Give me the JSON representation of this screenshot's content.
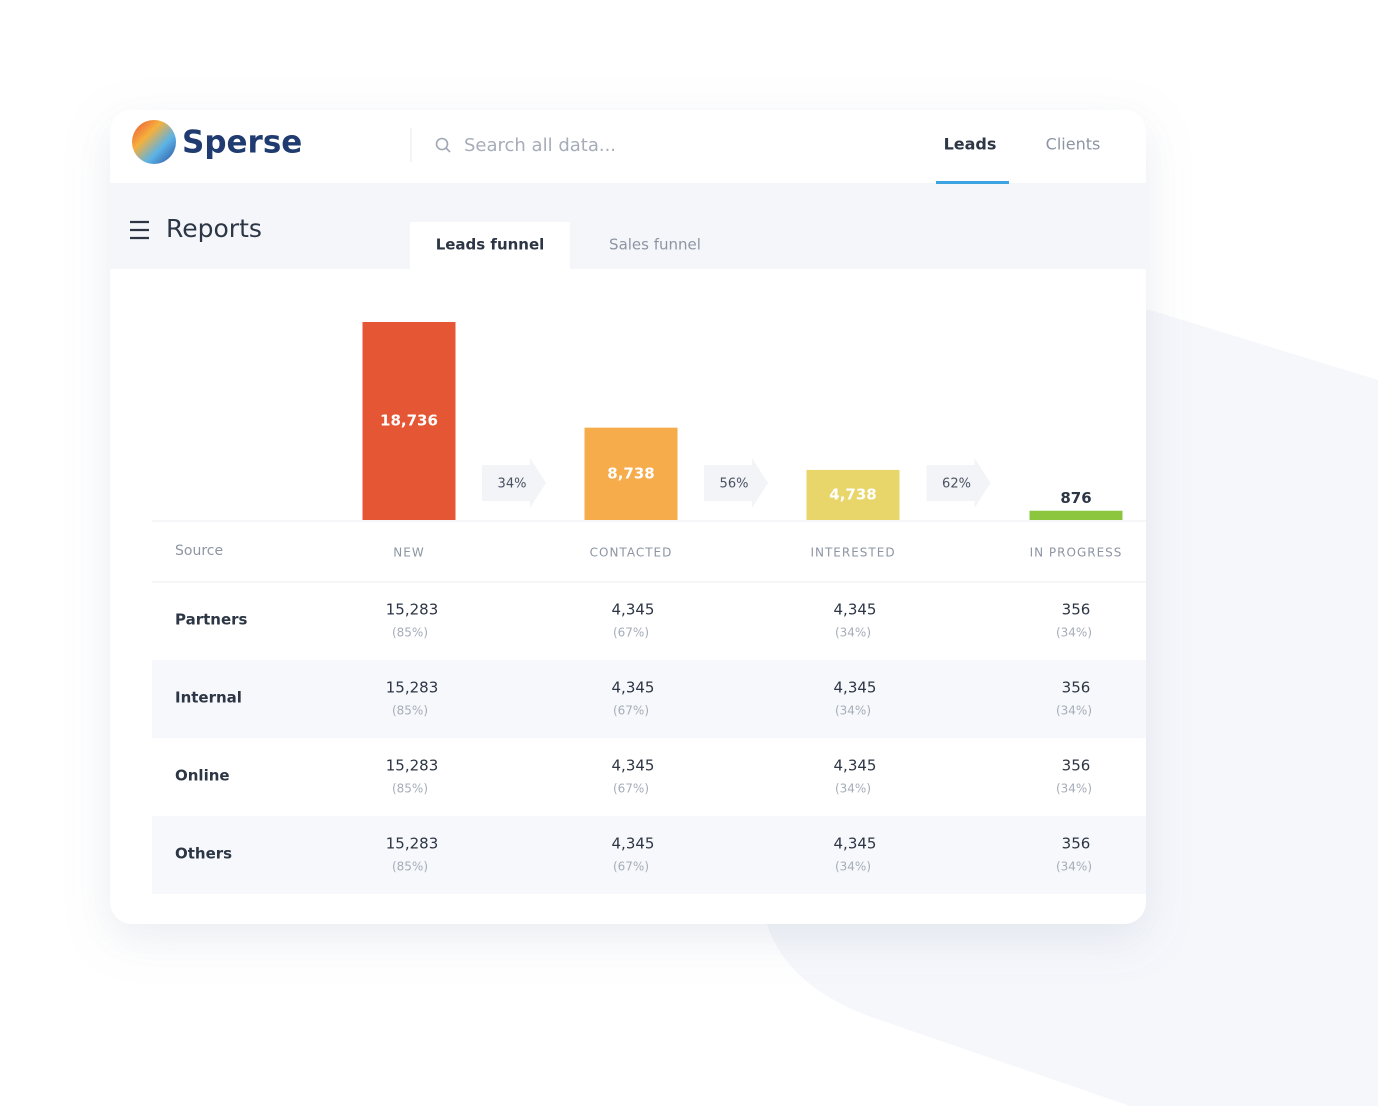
{
  "header": {
    "logo": "Sperse",
    "search_placeholder": "Search all data...",
    "nav": [
      "Leads",
      "Clients"
    ]
  },
  "page": {
    "title": "Reports",
    "tabs": [
      "Leads funnel",
      "Sales funnel"
    ]
  },
  "chart_data": {
    "type": "bar",
    "categories": [
      "NEW",
      "CONTACTED",
      "INTERESTED",
      "IN PROGRESS"
    ],
    "values": [
      18736,
      8738,
      4738,
      876
    ],
    "value_labels": [
      "18,736",
      "8,738",
      "4,738",
      "876"
    ],
    "colors": [
      "#e55634",
      "#f7ac4b",
      "#e8d66a",
      "#8cc63f"
    ],
    "conversions": [
      {
        "value": 34,
        "label": "34%"
      },
      {
        "value": 56,
        "label": "56%"
      },
      {
        "value": 62,
        "label": "62%"
      }
    ]
  },
  "table": {
    "header": "Source",
    "rows": [
      {
        "source": "Partners",
        "cells": [
          {
            "value": "15,283",
            "pct": "(85%)"
          },
          {
            "value": "4,345",
            "pct": "(67%)"
          },
          {
            "value": "4,345",
            "pct": "(34%)"
          },
          {
            "value": "356",
            "pct": "(34%)"
          }
        ]
      },
      {
        "source": "Internal",
        "cells": [
          {
            "value": "15,283",
            "pct": "(85%)"
          },
          {
            "value": "4,345",
            "pct": "(67%)"
          },
          {
            "value": "4,345",
            "pct": "(34%)"
          },
          {
            "value": "356",
            "pct": "(34%)"
          }
        ]
      },
      {
        "source": "Online",
        "cells": [
          {
            "value": "15,283",
            "pct": "(85%)"
          },
          {
            "value": "4,345",
            "pct": "(67%)"
          },
          {
            "value": "4,345",
            "pct": "(34%)"
          },
          {
            "value": "356",
            "pct": "(34%)"
          }
        ]
      },
      {
        "source": "Others",
        "cells": [
          {
            "value": "15,283",
            "pct": "(85%)"
          },
          {
            "value": "4,345",
            "pct": "(67%)"
          },
          {
            "value": "4,345",
            "pct": "(34%)"
          },
          {
            "value": "356",
            "pct": "(34%)"
          }
        ]
      }
    ]
  }
}
